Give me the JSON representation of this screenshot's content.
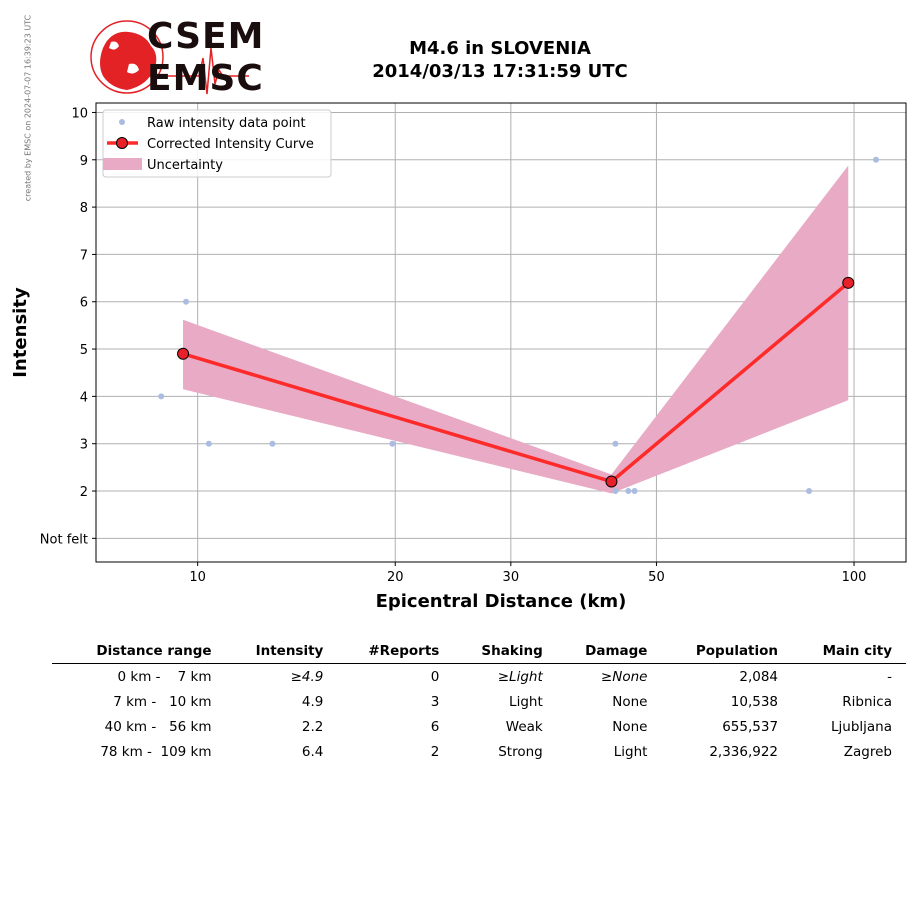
{
  "watermark": "created by EMSC on 2024-07-07 16:39:23 UTC",
  "logo": {
    "line1": "CSEM",
    "line2": "EMSC"
  },
  "title": {
    "line1": "M4.6 in SLOVENIA",
    "line2": "2014/03/13 17:31:59 UTC"
  },
  "colors": {
    "curve": "#ff2a2a",
    "marker_fill": "#e8202a",
    "uncertainty": "#e8aac4",
    "raw_points": "#aabcdf",
    "grid": "#b0b0b0"
  },
  "chart_data": {
    "type": "line",
    "title": "",
    "xlabel": "Epicentral Distance (km)",
    "ylabel": "Intensity",
    "xscale": "log",
    "xlim": [
      7.0,
      120
    ],
    "ylim": [
      0.5,
      10.2
    ],
    "xticks": [
      10,
      20,
      30,
      50,
      100
    ],
    "yticks": [
      1,
      2,
      3,
      4,
      5,
      6,
      7,
      8,
      9,
      10
    ],
    "ytick_labels": [
      "Not felt",
      "2",
      "3",
      "4",
      "5",
      "6",
      "7",
      "8",
      "9",
      "10"
    ],
    "grid": true,
    "legend": {
      "position": "top-left",
      "entries": [
        "Raw intensity data point",
        "Corrected Intensity Curve",
        "Uncertainty"
      ]
    },
    "raw_points": [
      {
        "x": 8.8,
        "y": 4
      },
      {
        "x": 9.6,
        "y": 6
      },
      {
        "x": 10.4,
        "y": 3
      },
      {
        "x": 13.0,
        "y": 3
      },
      {
        "x": 19.8,
        "y": 3
      },
      {
        "x": 43.3,
        "y": 3
      },
      {
        "x": 43.3,
        "y": 2
      },
      {
        "x": 45.3,
        "y": 2
      },
      {
        "x": 46.3,
        "y": 2
      },
      {
        "x": 85.4,
        "y": 2
      },
      {
        "x": 108,
        "y": 9
      }
    ],
    "series": [
      {
        "name": "Corrected Intensity Curve",
        "x": [
          9.5,
          42.7,
          98
        ],
        "y": [
          4.9,
          2.2,
          6.4
        ]
      }
    ],
    "uncertainty": {
      "name": "Uncertainty",
      "x": [
        9.5,
        42.7,
        98
      ],
      "lower": [
        4.15,
        1.95,
        3.92
      ],
      "upper": [
        5.62,
        2.35,
        8.88
      ]
    }
  },
  "table": {
    "headers": [
      "Distance range",
      "Intensity",
      "#Reports",
      "Shaking",
      "Damage",
      "Population",
      "Main city"
    ],
    "rows": [
      {
        "distance": "0 km -    7 km",
        "intensity": "≥4.9",
        "reports": "0",
        "shaking": "≥Light",
        "damage": "≥None",
        "population": "2,084",
        "city": "-",
        "italic": true
      },
      {
        "distance": "7 km -   10 km",
        "intensity": "4.9",
        "reports": "3",
        "shaking": "Light",
        "damage": "None",
        "population": "10,538",
        "city": "Ribnica",
        "italic": false
      },
      {
        "distance": "40 km -   56 km",
        "intensity": "2.2",
        "reports": "6",
        "shaking": "Weak",
        "damage": "None",
        "population": "655,537",
        "city": "Ljubljana",
        "italic": false
      },
      {
        "distance": "78 km -  109 km",
        "intensity": "6.4",
        "reports": "2",
        "shaking": "Strong",
        "damage": "Light",
        "population": "2,336,922",
        "city": "Zagreb",
        "italic": false
      }
    ]
  }
}
